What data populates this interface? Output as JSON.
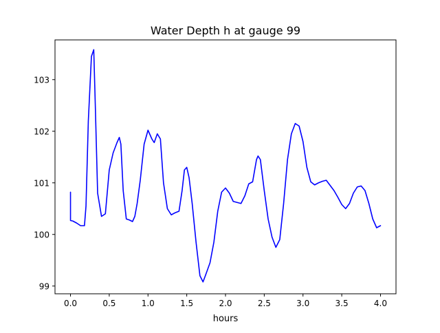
{
  "chart_data": {
    "type": "line",
    "title": "Water Depth h at gauge 99",
    "xlabel": "hours",
    "ylabel": "",
    "xlim": [
      -0.2,
      4.2
    ],
    "ylim": [
      98.85,
      103.77
    ],
    "xticks": [
      0.0,
      0.5,
      1.0,
      1.5,
      2.0,
      2.5,
      3.0,
      3.5,
      4.0
    ],
    "xtick_labels": [
      "0.0",
      "0.5",
      "1.0",
      "1.5",
      "2.0",
      "2.5",
      "3.0",
      "3.5",
      "4.0"
    ],
    "yticks": [
      99,
      100,
      101,
      102,
      103
    ],
    "ytick_labels": [
      "99",
      "100",
      "101",
      "102",
      "103"
    ],
    "grid": false,
    "legend": "none",
    "series": [
      {
        "color": "#0000ff",
        "x": [
          0.0,
          0.0,
          0.03,
          0.08,
          0.13,
          0.18,
          0.2,
          0.23,
          0.27,
          0.3,
          0.32,
          0.35,
          0.4,
          0.45,
          0.5,
          0.55,
          0.6,
          0.63,
          0.65,
          0.68,
          0.72,
          0.76,
          0.8,
          0.83,
          0.86,
          0.9,
          0.95,
          1.0,
          1.05,
          1.08,
          1.12,
          1.16,
          1.2,
          1.25,
          1.3,
          1.35,
          1.4,
          1.44,
          1.47,
          1.5,
          1.53,
          1.57,
          1.62,
          1.67,
          1.71,
          1.74,
          1.8,
          1.85,
          1.9,
          1.95,
          2.0,
          2.05,
          2.1,
          2.15,
          2.2,
          2.25,
          2.3,
          2.35,
          2.4,
          2.42,
          2.45,
          2.5,
          2.55,
          2.6,
          2.65,
          2.7,
          2.75,
          2.8,
          2.85,
          2.9,
          2.95,
          3.0,
          3.05,
          3.1,
          3.15,
          3.2,
          3.25,
          3.3,
          3.35,
          3.4,
          3.45,
          3.5,
          3.55,
          3.6,
          3.65,
          3.7,
          3.75,
          3.8,
          3.85,
          3.9,
          3.95,
          4.0
        ],
        "y": [
          100.82,
          100.27,
          100.26,
          100.22,
          100.17,
          100.17,
          100.55,
          102.2,
          103.45,
          103.58,
          102.5,
          100.8,
          100.35,
          100.4,
          101.25,
          101.58,
          101.78,
          101.88,
          101.75,
          100.85,
          100.3,
          100.28,
          100.25,
          100.35,
          100.6,
          101.05,
          101.75,
          102.02,
          101.85,
          101.78,
          101.95,
          101.85,
          101.0,
          100.5,
          100.38,
          100.42,
          100.45,
          100.85,
          101.25,
          101.3,
          101.1,
          100.6,
          99.85,
          99.2,
          99.08,
          99.2,
          99.45,
          99.85,
          100.45,
          100.82,
          100.9,
          100.8,
          100.64,
          100.62,
          100.6,
          100.75,
          100.98,
          101.02,
          101.45,
          101.52,
          101.45,
          100.85,
          100.3,
          99.95,
          99.75,
          99.9,
          100.6,
          101.45,
          101.95,
          102.15,
          102.1,
          101.8,
          101.3,
          101.02,
          100.96,
          101.0,
          101.03,
          101.05,
          100.95,
          100.85,
          100.72,
          100.58,
          100.5,
          100.6,
          100.8,
          100.92,
          100.94,
          100.85,
          100.6,
          100.3,
          100.13,
          100.17
        ]
      }
    ]
  }
}
